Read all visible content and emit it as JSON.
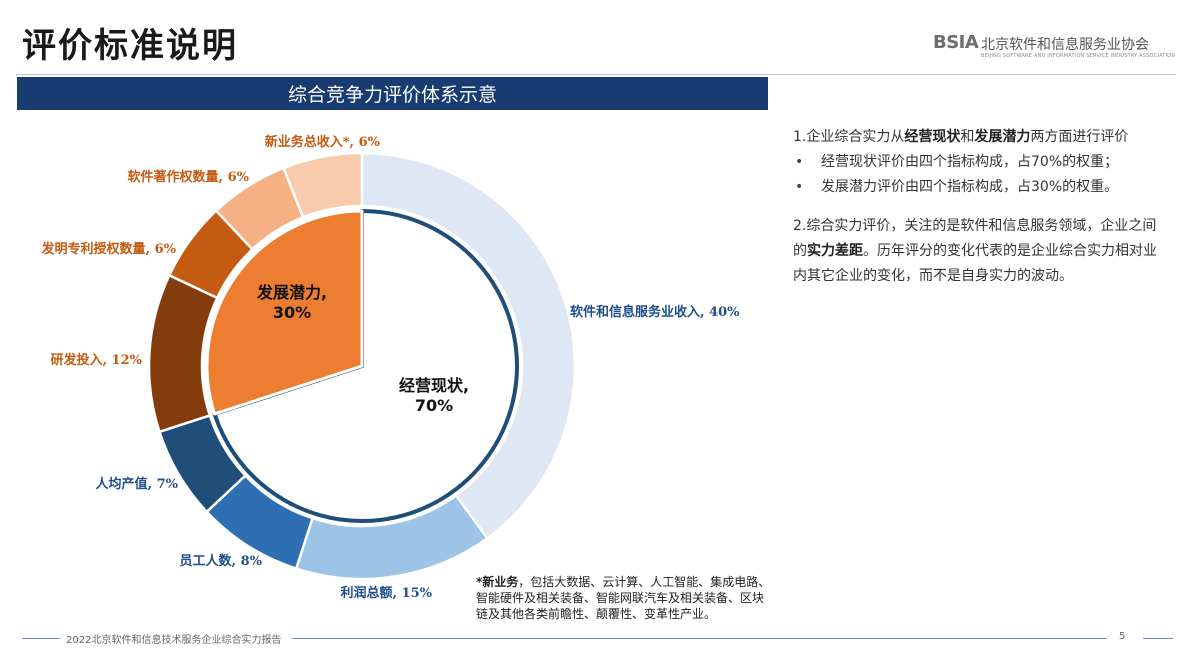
{
  "header": {
    "title": "评价标准说明",
    "logo_mark": "BSIA",
    "logo_name": "北京软件和信息服务业协会",
    "logo_en": "BEIJING SOFTWARE AND INFORMATION SERVICE INDUSTRY ASSOCIATION"
  },
  "chart_banner": "综合竞争力评价体系示意",
  "chart_data": {
    "type": "pie",
    "inner": [
      {
        "label": "经营现状,",
        "pct": "70%",
        "value": 70,
        "color": "#ffffff"
      },
      {
        "label": "发展潜力,",
        "pct": "30%",
        "value": 30,
        "color": "#ed7d31"
      }
    ],
    "outer": [
      {
        "label": "软件和信息服务业收入, 40%",
        "value": 40,
        "color": "#dde8f4",
        "label_color": "#1f4e8a"
      },
      {
        "label": "利润总额, 15%",
        "value": 15,
        "color": "#9dc3e6",
        "label_color": "#1f4e8a"
      },
      {
        "label": "员工人数, 8%",
        "value": 8,
        "color": "#2e6fb4",
        "label_color": "#1f4e8a"
      },
      {
        "label": "人均产值, 7%",
        "value": 7,
        "color": "#1f4e79",
        "label_color": "#1f4e8a"
      },
      {
        "label": "研发投入, 12%",
        "value": 12,
        "color": "#843c0c",
        "label_color": "#c55a11"
      },
      {
        "label": "发明专利授权数量, 6%",
        "value": 6,
        "color": "#c55a11",
        "label_color": "#c55a11"
      },
      {
        "label": "软件著作权数量, 6%",
        "value": 6,
        "color": "#f4b183",
        "label_color": "#c55a11"
      },
      {
        "label": "新业务总收入*, 6%",
        "value": 6,
        "color": "#f8cbad",
        "label_color": "#c55a11"
      }
    ]
  },
  "footnote": {
    "mark": "*新业务",
    "text": "，包括大数据、云计算、人工智能、集成电路、智能硬件及相关装备、智能网联汽车及相关装备、区块链及其他各类前瞻性、颠覆性、变革性产业。"
  },
  "panel": {
    "p1_a": "1.企业综合实力从",
    "p1_b": "经营现状",
    "p1_c": "和",
    "p1_d": "发展潜力",
    "p1_e": "两方面进行评价",
    "bullet1": "经营现状评价由四个指标构成，占70%的权重；",
    "bullet2": "发展潜力评价由四个指标构成，占30%的权重。",
    "p2_a": "2.综合实力评价，关注的是软件和信息服务领域，企业之间的",
    "p2_b": "实力差距",
    "p2_c": "。历年评分的变化代表的是企业综合实力相对业内其它企业的变化，而不是自身实力的波动。"
  },
  "footer": {
    "text": "2022北京软件和信息技术服务企业综合实力报告",
    "page": "5"
  }
}
